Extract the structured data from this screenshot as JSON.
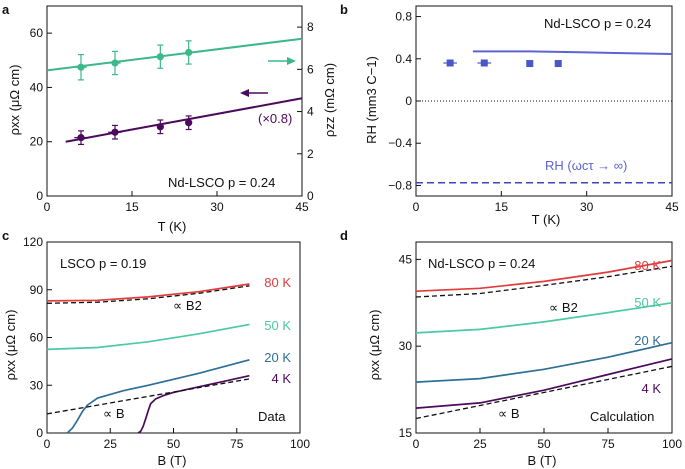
{
  "colors": {
    "green": "#3cb88a",
    "purple": "#4b0a5c",
    "blue_pts": "#4a57c8",
    "blue_line": "#5d63d4",
    "red": "#e23b3b",
    "mint": "#4cc8a3",
    "teal": "#2f6e96",
    "black": "#111111"
  },
  "chart_data": [
    {
      "panel": "a",
      "type": "scatter",
      "title": "",
      "xlabel": "T (K)",
      "ylabel": "ρxx (μΩ cm)",
      "ylabel2": "ρzz (mΩ cm)",
      "xlim": [
        0,
        45
      ],
      "ylim": [
        0,
        70
      ],
      "ylim2": [
        0,
        9
      ],
      "xticks": [
        0,
        15,
        30,
        45
      ],
      "yticks": [
        0,
        20,
        40,
        60
      ],
      "yticks2": [
        0,
        2,
        4,
        6,
        8
      ],
      "annotation": "Nd-LSCO p = 0.24",
      "scale_note": "(×0.8)",
      "series": [
        {
          "name": "ρzz",
          "axis": "right",
          "color": "#3cb88a",
          "points": [
            [
              6,
              6.1
            ],
            [
              12,
              6.3
            ],
            [
              20,
              6.6
            ],
            [
              25,
              6.8
            ]
          ],
          "yerr": [
            0.6,
            0.55,
            0.55,
            0.55
          ],
          "xerr": [
            1,
            1,
            0.6,
            0.6
          ],
          "fit": [
            [
              0,
              5.95
            ],
            [
              45,
              7.45
            ]
          ]
        },
        {
          "name": "ρxx",
          "axis": "left",
          "color": "#4b0a5c",
          "points": [
            [
              6,
              21.5
            ],
            [
              12,
              23.5
            ],
            [
              20,
              25.5
            ],
            [
              25,
              27
            ]
          ],
          "yerr": [
            2.5,
            2.5,
            2.5,
            2.5
          ],
          "xerr": [
            1.2,
            1.2,
            0.6,
            0.6
          ],
          "fit": [
            [
              3.3,
              20
            ],
            [
              45,
              36
            ]
          ]
        }
      ]
    },
    {
      "panel": "b",
      "type": "scatter",
      "xlabel": "T (K)",
      "ylabel": "RH (mm3 C−1)",
      "xlim": [
        0,
        45
      ],
      "ylim": [
        -0.9,
        0.9
      ],
      "xticks": [
        0,
        15,
        30,
        45
      ],
      "yticks": [
        0.8,
        0.4,
        0,
        -0.4,
        -0.8
      ],
      "annotation": "Nd-LSCO p = 0.24",
      "limit_label": "RH (ωcτ → ∞)",
      "limit_value": -0.775,
      "series": [
        {
          "name": "RH data",
          "color": "#4a57c8",
          "points": [
            [
              6,
              0.36
            ],
            [
              12,
              0.36
            ],
            [
              20,
              0.355
            ],
            [
              25,
              0.355
            ]
          ],
          "yerr": [
            0.03,
            0.03,
            0.03,
            0.03
          ],
          "xerr": [
            1.2,
            1.2,
            0.6,
            0.6
          ]
        },
        {
          "name": "RH calc",
          "color": "#5d63d4",
          "line": [
            [
              10,
              0.47
            ],
            [
              15,
              0.47
            ],
            [
              20,
              0.47
            ],
            [
              25,
              0.465
            ],
            [
              30,
              0.46
            ],
            [
              35,
              0.455
            ],
            [
              40,
              0.45
            ],
            [
              45,
              0.445
            ]
          ]
        }
      ]
    },
    {
      "panel": "c",
      "type": "line",
      "xlabel": "B (T)",
      "ylabel": "ρxx (μΩ cm)",
      "xlim": [
        0,
        100
      ],
      "ylim": [
        0,
        120
      ],
      "xticks": [
        0,
        25,
        50,
        75,
        100
      ],
      "yticks": [
        0,
        30,
        60,
        90,
        120
      ],
      "annotation": "LSCO p = 0.19",
      "corner_label": "Data",
      "b2_label": "∝ B2",
      "b_label": "∝ B",
      "series": [
        {
          "name": "80 K",
          "color": "#e23b3b",
          "x": [
            0,
            20,
            40,
            60,
            80
          ],
          "y": [
            83,
            83.4,
            85.5,
            88.8,
            93.6
          ]
        },
        {
          "name": "50 K",
          "color": "#4cc8a3",
          "x": [
            0,
            20,
            40,
            60,
            80
          ],
          "y": [
            52.5,
            53.7,
            57.3,
            62.3,
            68.2
          ]
        },
        {
          "name": "20 K",
          "color": "#2f6e96",
          "x": [
            8,
            10,
            12,
            14,
            16,
            20,
            30,
            40,
            60,
            80
          ],
          "y": [
            0,
            3,
            8,
            13.5,
            17.5,
            22,
            26.5,
            30,
            37.5,
            46
          ]
        },
        {
          "name": "4 K",
          "color": "#4b0a5c",
          "x": [
            36,
            37,
            38,
            39,
            40,
            41,
            43,
            46,
            50,
            60,
            70,
            80
          ],
          "y": [
            0,
            1,
            4,
            9,
            14,
            18.5,
            21.5,
            23.5,
            25.5,
            29,
            32.5,
            36
          ]
        },
        {
          "name": "∝ B2 fit",
          "color": "#111111",
          "dashed": true,
          "x": [
            0,
            20,
            40,
            60,
            80
          ],
          "y": [
            81.5,
            82.2,
            84.3,
            87.8,
            92.5
          ]
        },
        {
          "name": "∝ B fit",
          "color": "#111111",
          "dashed": true,
          "x": [
            0,
            80
          ],
          "y": [
            12,
            34
          ]
        }
      ]
    },
    {
      "panel": "d",
      "type": "line",
      "xlabel": "B (T)",
      "ylabel": "ρxx (μΩ cm)",
      "xlim": [
        0,
        100
      ],
      "ylim": [
        15,
        48
      ],
      "xticks": [
        0,
        25,
        50,
        75,
        100
      ],
      "yticks": [
        15,
        30,
        45
      ],
      "annotation": "Nd-LSCO p = 0.24",
      "corner_label": "Calculation",
      "b2_label": "∝ B2",
      "b_label": "∝ B",
      "series": [
        {
          "name": "80 K",
          "color": "#e23b3b",
          "x": [
            0,
            25,
            50,
            75,
            100
          ],
          "y": [
            39.5,
            40,
            41.2,
            42.8,
            44.8
          ]
        },
        {
          "name": "50 K",
          "color": "#4cc8a3",
          "x": [
            0,
            25,
            50,
            75,
            100
          ],
          "y": [
            32.3,
            32.9,
            34.2,
            35.8,
            37.5
          ]
        },
        {
          "name": "20 K",
          "color": "#2f6e96",
          "x": [
            0,
            25,
            50,
            75,
            100
          ],
          "y": [
            23.8,
            24.4,
            26,
            28.1,
            30.6
          ]
        },
        {
          "name": "4 K",
          "color": "#4b0a5c",
          "x": [
            0,
            25,
            50,
            75,
            100
          ],
          "y": [
            19.3,
            20.2,
            22.4,
            25.1,
            27.8
          ]
        },
        {
          "name": "∝ B2 fit",
          "color": "#111111",
          "dashed": true,
          "x": [
            0,
            25,
            50,
            75,
            100
          ],
          "y": [
            38.5,
            39.1,
            40.5,
            42,
            43.8
          ]
        },
        {
          "name": "∝ B fit",
          "color": "#111111",
          "dashed": true,
          "x": [
            0,
            100
          ],
          "y": [
            17.5,
            26.5
          ]
        }
      ]
    }
  ]
}
